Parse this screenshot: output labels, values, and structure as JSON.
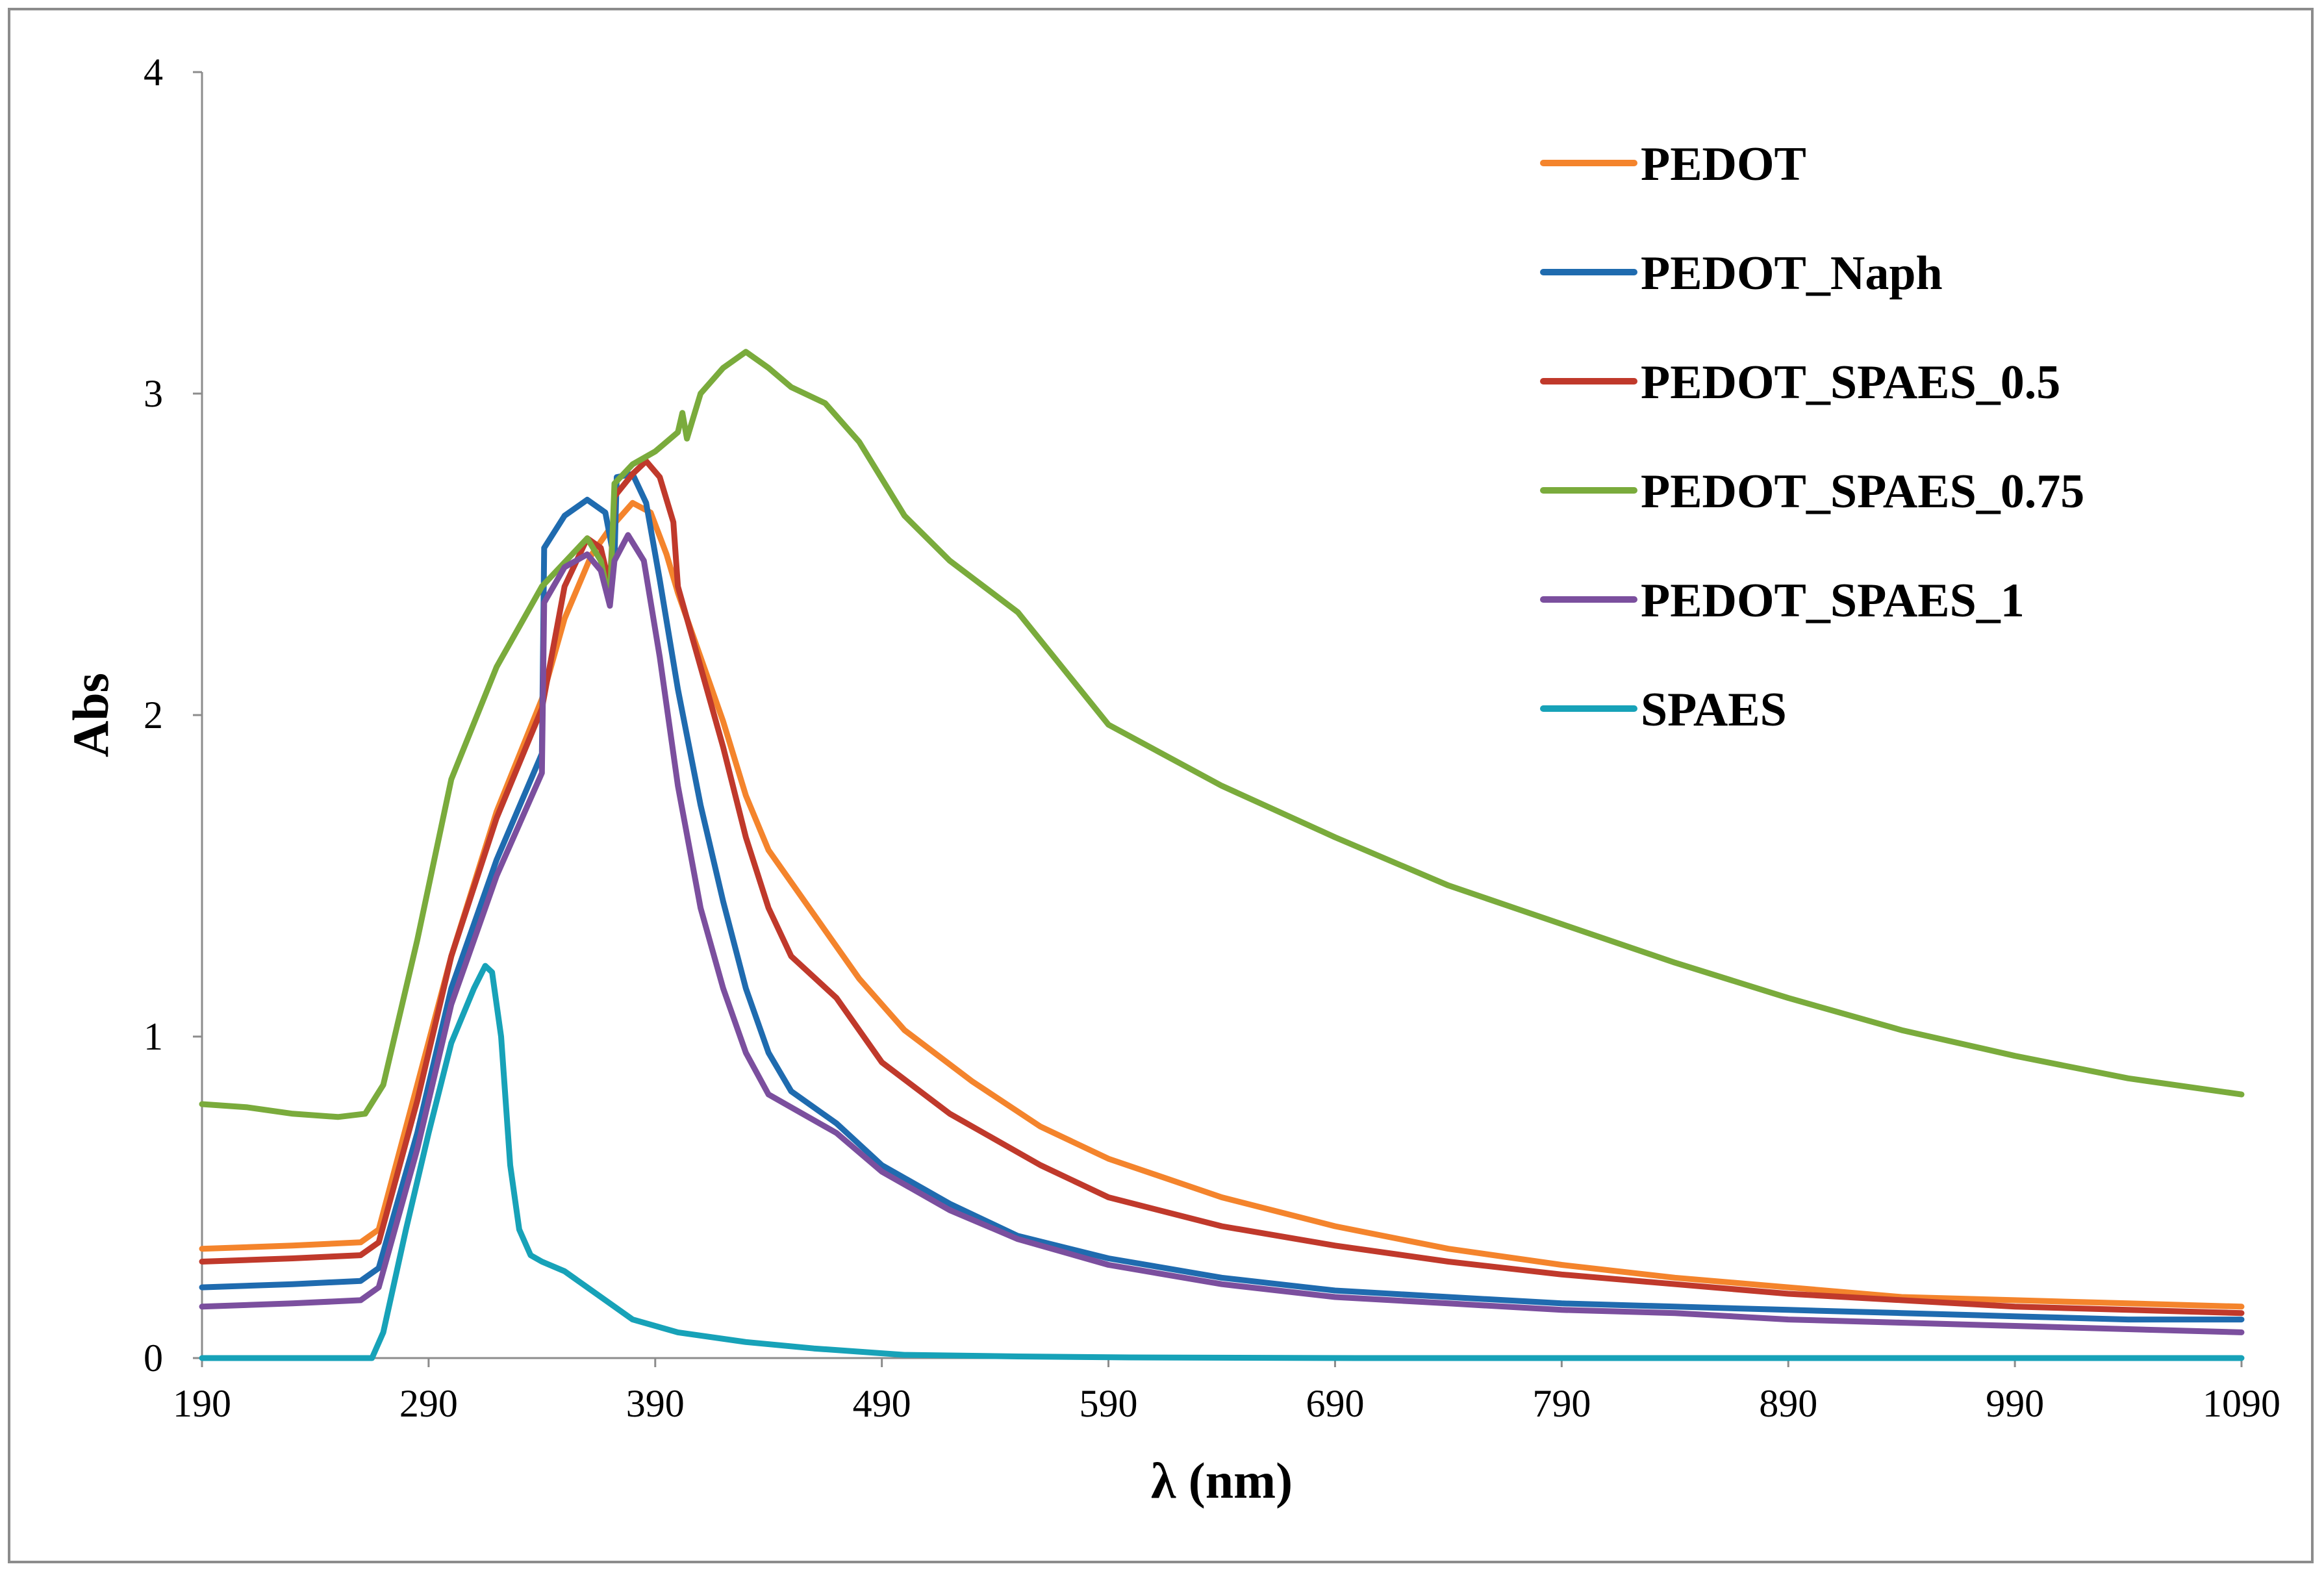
{
  "chart_data": {
    "type": "line",
    "title": "",
    "xlabel": "λ (nm)",
    "ylabel": "Abs",
    "xlim": [
      190,
      1090
    ],
    "ylim": [
      0,
      4
    ],
    "xticks": [
      190,
      290,
      390,
      490,
      590,
      690,
      790,
      890,
      990,
      1090
    ],
    "xtick_labels": [
      "190",
      "290",
      "390",
      "490",
      "590",
      "690",
      "790",
      "890",
      "990",
      "1090"
    ],
    "yticks": [
      0,
      1,
      2,
      3,
      4
    ],
    "ytick_labels": [
      "0",
      "1",
      "2",
      "3",
      "4"
    ],
    "grid": false,
    "legend_position": "top-right",
    "series": [
      {
        "name": "PEDOT",
        "color": "#F4842C",
        "points": [
          [
            190,
            0.34
          ],
          [
            230,
            0.35
          ],
          [
            260,
            0.36
          ],
          [
            268,
            0.4
          ],
          [
            285,
            0.85
          ],
          [
            300,
            1.25
          ],
          [
            320,
            1.7
          ],
          [
            340,
            2.05
          ],
          [
            350,
            2.3
          ],
          [
            362,
            2.5
          ],
          [
            370,
            2.58
          ],
          [
            380,
            2.66
          ],
          [
            388,
            2.63
          ],
          [
            395,
            2.5
          ],
          [
            400,
            2.38
          ],
          [
            410,
            2.18
          ],
          [
            420,
            1.98
          ],
          [
            430,
            1.75
          ],
          [
            440,
            1.58
          ],
          [
            460,
            1.38
          ],
          [
            480,
            1.18
          ],
          [
            500,
            1.02
          ],
          [
            530,
            0.86
          ],
          [
            560,
            0.72
          ],
          [
            590,
            0.62
          ],
          [
            640,
            0.5
          ],
          [
            690,
            0.41
          ],
          [
            740,
            0.34
          ],
          [
            790,
            0.29
          ],
          [
            840,
            0.25
          ],
          [
            890,
            0.22
          ],
          [
            940,
            0.19
          ],
          [
            990,
            0.18
          ],
          [
            1040,
            0.17
          ],
          [
            1090,
            0.16
          ]
        ]
      },
      {
        "name": "PEDOT_Naph",
        "color": "#1F6BAF",
        "points": [
          [
            190,
            0.22
          ],
          [
            230,
            0.23
          ],
          [
            260,
            0.24
          ],
          [
            268,
            0.28
          ],
          [
            285,
            0.7
          ],
          [
            300,
            1.15
          ],
          [
            320,
            1.55
          ],
          [
            340,
            1.88
          ],
          [
            341,
            2.52
          ],
          [
            350,
            2.62
          ],
          [
            360,
            2.67
          ],
          [
            368,
            2.63
          ],
          [
            372,
            2.48
          ],
          [
            373,
            2.74
          ],
          [
            380,
            2.75
          ],
          [
            386,
            2.66
          ],
          [
            392,
            2.42
          ],
          [
            400,
            2.08
          ],
          [
            410,
            1.72
          ],
          [
            420,
            1.42
          ],
          [
            430,
            1.15
          ],
          [
            440,
            0.95
          ],
          [
            450,
            0.83
          ],
          [
            470,
            0.73
          ],
          [
            490,
            0.6
          ],
          [
            520,
            0.48
          ],
          [
            550,
            0.38
          ],
          [
            590,
            0.31
          ],
          [
            640,
            0.25
          ],
          [
            690,
            0.21
          ],
          [
            740,
            0.19
          ],
          [
            790,
            0.17
          ],
          [
            840,
            0.16
          ],
          [
            890,
            0.15
          ],
          [
            940,
            0.14
          ],
          [
            990,
            0.13
          ],
          [
            1040,
            0.12
          ],
          [
            1090,
            0.12
          ]
        ]
      },
      {
        "name": "PEDOT_SPAES_0.5",
        "color": "#C0392B",
        "points": [
          [
            190,
            0.3
          ],
          [
            230,
            0.31
          ],
          [
            260,
            0.32
          ],
          [
            268,
            0.36
          ],
          [
            285,
            0.8
          ],
          [
            300,
            1.25
          ],
          [
            320,
            1.68
          ],
          [
            340,
            2.02
          ],
          [
            350,
            2.4
          ],
          [
            360,
            2.55
          ],
          [
            366,
            2.52
          ],
          [
            370,
            2.4
          ],
          [
            372,
            2.68
          ],
          [
            380,
            2.75
          ],
          [
            386,
            2.79
          ],
          [
            392,
            2.74
          ],
          [
            398,
            2.6
          ],
          [
            400,
            2.4
          ],
          [
            410,
            2.15
          ],
          [
            420,
            1.9
          ],
          [
            430,
            1.62
          ],
          [
            440,
            1.4
          ],
          [
            450,
            1.25
          ],
          [
            470,
            1.12
          ],
          [
            490,
            0.92
          ],
          [
            520,
            0.76
          ],
          [
            560,
            0.6
          ],
          [
            590,
            0.5
          ],
          [
            640,
            0.41
          ],
          [
            690,
            0.35
          ],
          [
            740,
            0.3
          ],
          [
            790,
            0.26
          ],
          [
            840,
            0.23
          ],
          [
            890,
            0.2
          ],
          [
            940,
            0.18
          ],
          [
            990,
            0.16
          ],
          [
            1040,
            0.15
          ],
          [
            1090,
            0.14
          ]
        ]
      },
      {
        "name": "PEDOT_SPAES_0.75",
        "color": "#7AAB3C",
        "points": [
          [
            190,
            0.79
          ],
          [
            210,
            0.78
          ],
          [
            230,
            0.76
          ],
          [
            250,
            0.75
          ],
          [
            262,
            0.76
          ],
          [
            270,
            0.85
          ],
          [
            285,
            1.3
          ],
          [
            300,
            1.8
          ],
          [
            320,
            2.15
          ],
          [
            340,
            2.4
          ],
          [
            360,
            2.55
          ],
          [
            366,
            2.48
          ],
          [
            370,
            2.35
          ],
          [
            372,
            2.72
          ],
          [
            380,
            2.78
          ],
          [
            390,
            2.82
          ],
          [
            400,
            2.88
          ],
          [
            402,
            2.94
          ],
          [
            404,
            2.86
          ],
          [
            410,
            3.0
          ],
          [
            420,
            3.08
          ],
          [
            430,
            3.13
          ],
          [
            440,
            3.08
          ],
          [
            450,
            3.02
          ],
          [
            465,
            2.97
          ],
          [
            480,
            2.85
          ],
          [
            500,
            2.62
          ],
          [
            520,
            2.48
          ],
          [
            550,
            2.32
          ],
          [
            590,
            1.97
          ],
          [
            640,
            1.78
          ],
          [
            690,
            1.62
          ],
          [
            740,
            1.47
          ],
          [
            790,
            1.35
          ],
          [
            840,
            1.23
          ],
          [
            890,
            1.12
          ],
          [
            940,
            1.02
          ],
          [
            990,
            0.94
          ],
          [
            1040,
            0.87
          ],
          [
            1090,
            0.82
          ]
        ]
      },
      {
        "name": "PEDOT_SPAES_1",
        "color": "#7B4F9E",
        "points": [
          [
            190,
            0.16
          ],
          [
            230,
            0.17
          ],
          [
            260,
            0.18
          ],
          [
            268,
            0.22
          ],
          [
            285,
            0.65
          ],
          [
            300,
            1.1
          ],
          [
            320,
            1.5
          ],
          [
            340,
            1.82
          ],
          [
            341,
            2.35
          ],
          [
            350,
            2.46
          ],
          [
            360,
            2.5
          ],
          [
            366,
            2.45
          ],
          [
            370,
            2.34
          ],
          [
            372,
            2.48
          ],
          [
            378,
            2.56
          ],
          [
            385,
            2.48
          ],
          [
            392,
            2.18
          ],
          [
            400,
            1.78
          ],
          [
            410,
            1.4
          ],
          [
            420,
            1.15
          ],
          [
            430,
            0.95
          ],
          [
            440,
            0.82
          ],
          [
            450,
            0.78
          ],
          [
            470,
            0.7
          ],
          [
            490,
            0.58
          ],
          [
            520,
            0.46
          ],
          [
            550,
            0.37
          ],
          [
            590,
            0.29
          ],
          [
            640,
            0.23
          ],
          [
            690,
            0.19
          ],
          [
            740,
            0.17
          ],
          [
            790,
            0.15
          ],
          [
            840,
            0.14
          ],
          [
            890,
            0.12
          ],
          [
            940,
            0.11
          ],
          [
            990,
            0.1
          ],
          [
            1040,
            0.09
          ],
          [
            1090,
            0.08
          ]
        ]
      },
      {
        "name": "SPAES",
        "color": "#17A2B8",
        "points": [
          [
            190,
            0.0
          ],
          [
            250,
            0.0
          ],
          [
            265,
            0.0
          ],
          [
            270,
            0.08
          ],
          [
            280,
            0.4
          ],
          [
            290,
            0.7
          ],
          [
            300,
            0.98
          ],
          [
            310,
            1.15
          ],
          [
            315,
            1.22
          ],
          [
            318,
            1.2
          ],
          [
            322,
            1.0
          ],
          [
            326,
            0.6
          ],
          [
            330,
            0.4
          ],
          [
            335,
            0.32
          ],
          [
            340,
            0.3
          ],
          [
            350,
            0.27
          ],
          [
            360,
            0.22
          ],
          [
            370,
            0.17
          ],
          [
            380,
            0.12
          ],
          [
            400,
            0.08
          ],
          [
            430,
            0.05
          ],
          [
            460,
            0.03
          ],
          [
            500,
            0.01
          ],
          [
            550,
            0.005
          ],
          [
            600,
            0.002
          ],
          [
            700,
            0.0
          ],
          [
            1090,
            0.0
          ]
        ]
      }
    ]
  }
}
